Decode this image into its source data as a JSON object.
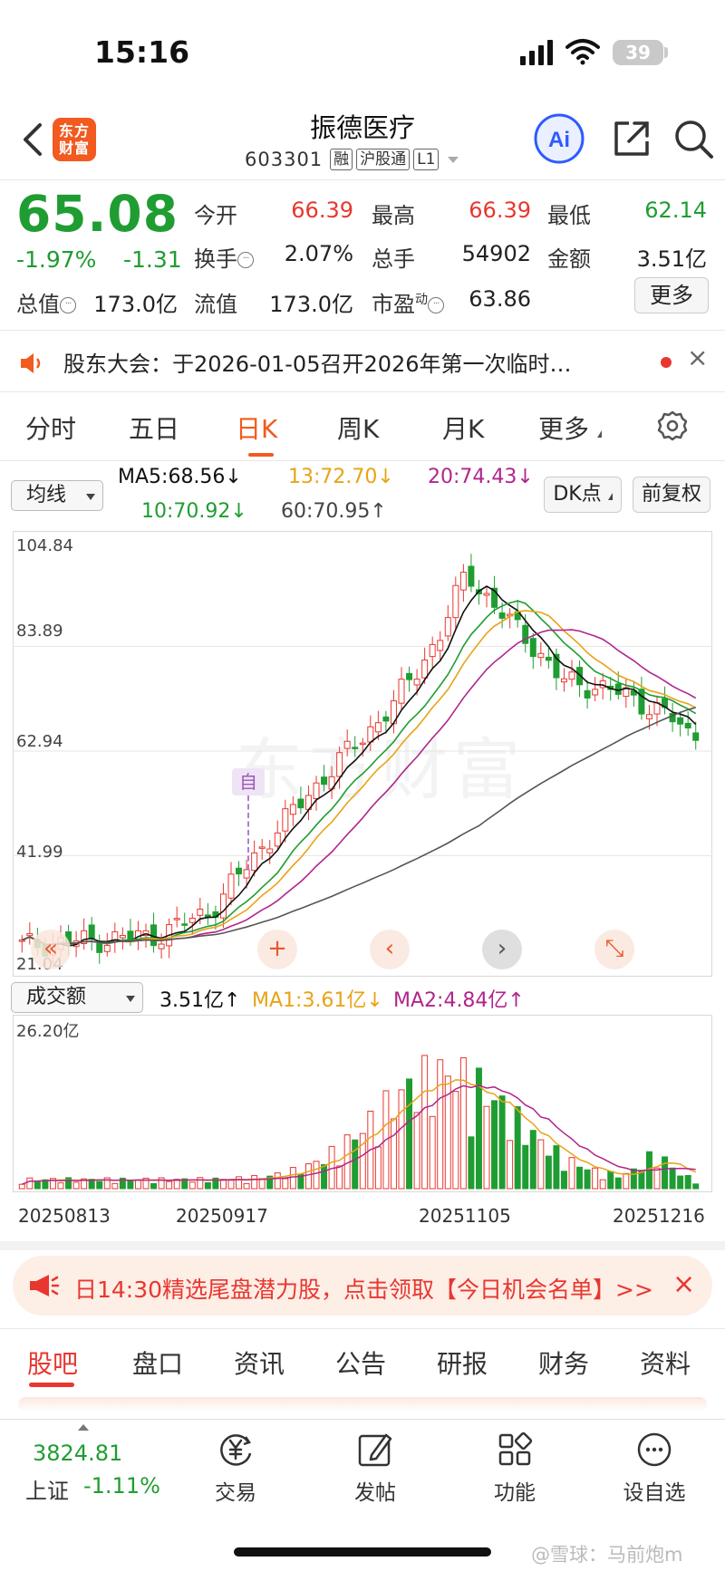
{
  "status_bar": {
    "time": "15:16",
    "battery": "39"
  },
  "header": {
    "app_logo": "东方财富",
    "stock_name": "振德医疗",
    "stock_code": "603301",
    "tags": [
      "融",
      "沪股通",
      "L1"
    ],
    "icons": [
      "back-icon",
      "ai-icon",
      "share-icon",
      "search-icon"
    ],
    "ai_label": "Ai"
  },
  "quote": {
    "price": "65.08",
    "change_pct": "-1.97%",
    "change_amt": "-1.31",
    "fields": [
      {
        "label": "今开",
        "value": "66.39",
        "color": "red"
      },
      {
        "label": "最高",
        "value": "66.39",
        "color": "red"
      },
      {
        "label": "最低",
        "value": "62.14",
        "color": "green"
      },
      {
        "label": "换手",
        "value": "2.07%",
        "color": "dark",
        "info": true
      },
      {
        "label": "总手",
        "value": "54902",
        "color": "dark"
      },
      {
        "label": "金额",
        "value": "3.51亿",
        "color": "dark"
      },
      {
        "label": "总值",
        "value": "173.0亿",
        "color": "dark",
        "info": true
      },
      {
        "label": "流值",
        "value": "173.0亿",
        "color": "dark"
      },
      {
        "label": "市盈",
        "sup": "动",
        "value": "63.86",
        "color": "dark",
        "info": true
      }
    ],
    "more_label": "更多"
  },
  "announcement": {
    "text": "股东大会：于2026-01-05召开2026年第一次临时…",
    "close": "×"
  },
  "period_tabs": [
    "分时",
    "五日",
    "日K",
    "周K",
    "月K",
    "更多"
  ],
  "active_period": "日K",
  "ma_panel": {
    "dropdown": "均线",
    "ma5": "MA5:68.56↓",
    "ma10": "10:70.92↓",
    "ma13": "13:72.70↓",
    "ma60": "60:70.95↑",
    "ma20": "20:74.43↓",
    "dk_label": "DK点",
    "adjust_label": "前复权"
  },
  "colors": {
    "up": "#e8372f",
    "down": "#1f9d32",
    "ma5": "#111111",
    "ma10": "#1f9d32",
    "ma13": "#e8a317",
    "ma20": "#b0268c",
    "ma60": "#555555",
    "accent": "#f25a1f"
  },
  "chart_data": {
    "type": "candlestick",
    "y_ticks": [
      "104.84",
      "83.89",
      "62.94",
      "41.99",
      "21.04"
    ],
    "ylim": [
      21.04,
      104.84
    ],
    "x_dates": [
      "20250813",
      "20250917",
      "20251105",
      "20251216"
    ],
    "marker": "自",
    "watermark": "东方财富",
    "last_close": 65.08,
    "day_low": 62.14,
    "day_high": 66.39,
    "volume_panel": {
      "dropdown": "成交额",
      "current": "3.51亿↑",
      "ma1": "MA1:3.61亿↓",
      "ma2": "MA2:4.84亿↑",
      "y_max": "26.20亿"
    }
  },
  "chart_nav": [
    "«",
    "+",
    "‹",
    "›",
    "⤡"
  ],
  "promo": {
    "text": "日14:30精选尾盘潜力股，点击领取【今日机会名单】>>",
    "close": "×"
  },
  "section_tabs": [
    "股吧",
    "盘口",
    "资讯",
    "公告",
    "研报",
    "财务",
    "资料"
  ],
  "active_section": "股吧",
  "bottom_nav": {
    "index_value": "3824.81",
    "index_name": "上证",
    "index_change": "-1.11%",
    "items": [
      "交易",
      "发帖",
      "功能",
      "设自选"
    ]
  },
  "credit": "@雪球：马前炮m"
}
